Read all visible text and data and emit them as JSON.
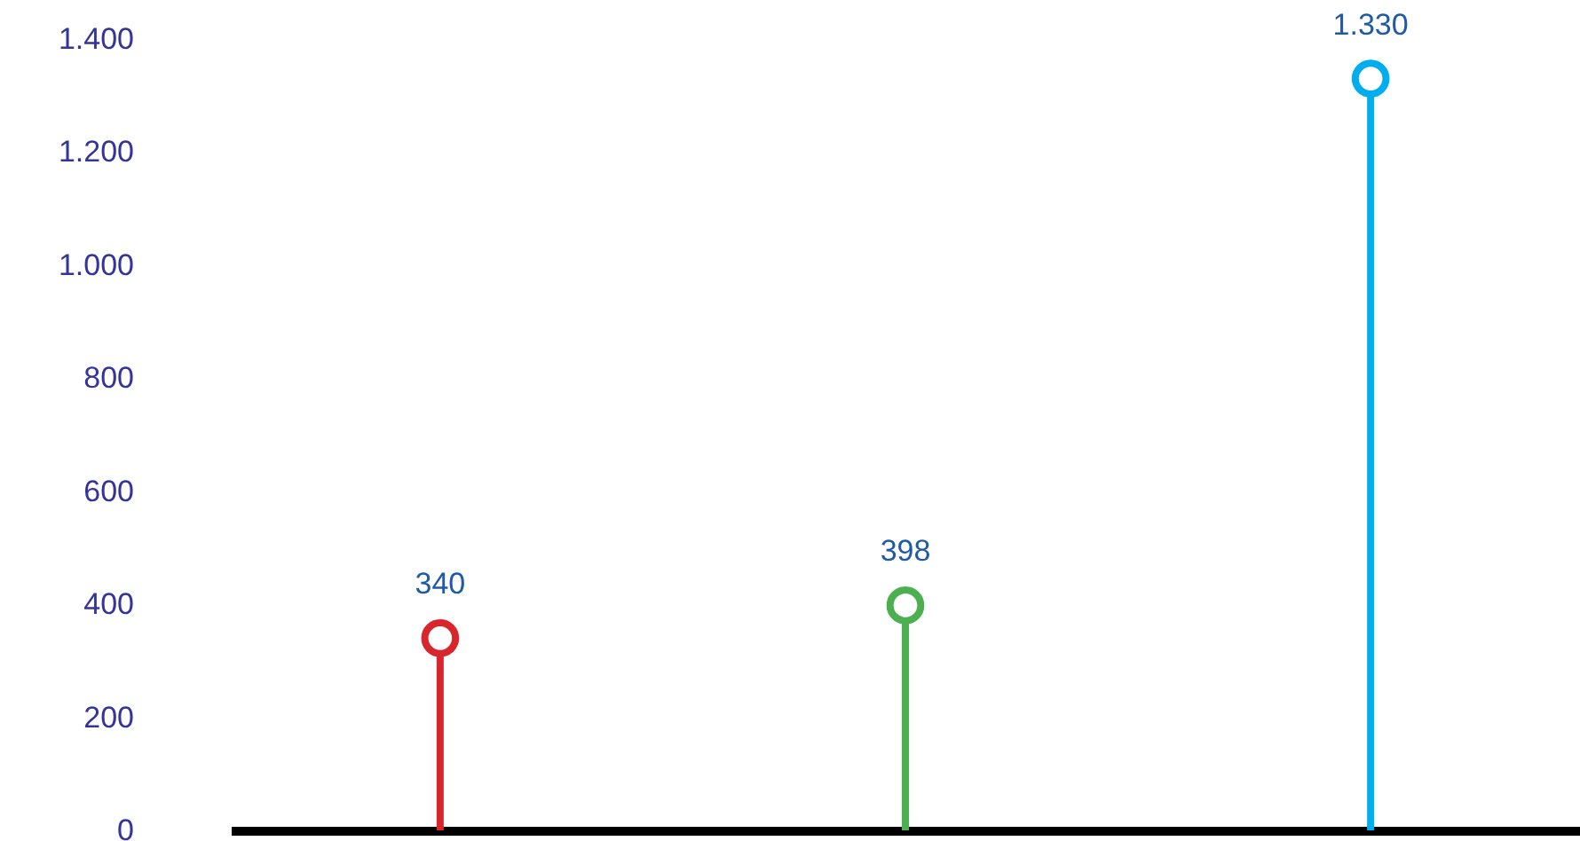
{
  "chart_data": {
    "type": "lollipop",
    "categories": [
      null,
      null,
      null
    ],
    "values": [
      340,
      398,
      1330
    ],
    "colors": [
      "#d9262c",
      "#4caf50",
      "#00aeef"
    ],
    "ylim": [
      0,
      1400
    ],
    "yticks": [
      0,
      200,
      400,
      600,
      800,
      {
        "value": 1000,
        "label": "1.000"
      },
      {
        "value": 1200,
        "label": "1.200"
      },
      {
        "value": 1400,
        "label": "1.400"
      }
    ],
    "value_labels": [
      "340",
      "398",
      "1.330"
    ],
    "marker": "circle",
    "tick_labels": "y"
  }
}
